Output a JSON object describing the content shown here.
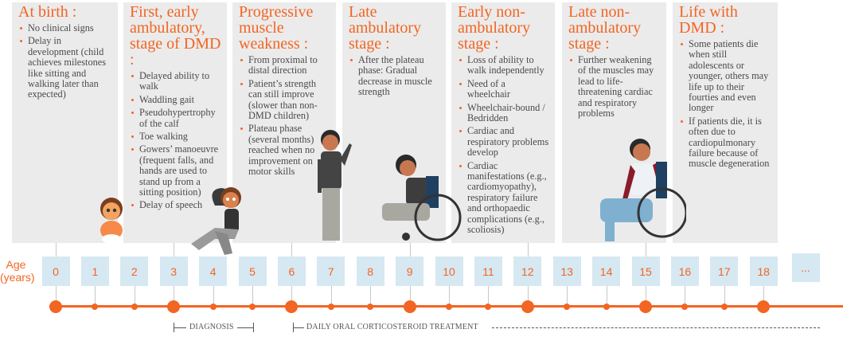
{
  "panels": [
    {
      "title": "At birth :",
      "items": [
        "No clinical signs",
        "Delay in development (child achieves milestones like sitting and walking later than expected)"
      ]
    },
    {
      "title": "First, early ambulatory, stage of DMD :",
      "items": [
        "Delayed ability to walk",
        "Waddling gait",
        "Pseudohypertrophy of the calf",
        "Toe walking",
        "Gowers’ manoeuvre (frequent falls, and hands are used to stand up from a sitting position)",
        "Delay of speech"
      ]
    },
    {
      "title": "Progressive muscle weakness :",
      "items": [
        "From proximal to distal direction",
        "Patient’s strength can still improve (slower than non-DMD children)",
        "Plateau phase (several months) reached when no improvement on motor skills"
      ]
    },
    {
      "title": "Late ambulatory stage :",
      "items": [
        "After the plateau phase: Gradual decrease in muscle strength"
      ]
    },
    {
      "title": "Early non-ambulatory stage :",
      "items": [
        "Loss of ability to walk independently",
        "Need of a wheelchair",
        "Wheelchair-bound / Bedridden",
        "Cardiac and respiratory problems develop",
        "Cardiac manifestations (e.g., cardiomyopathy), respiratory failure and orthopaedic complications (e.g., scoliosis)"
      ]
    },
    {
      "title": "Late non-ambulatory stage :",
      "items": [
        "Further weakening of the muscles may lead to life-threatening cardiac and respiratory problems"
      ]
    },
    {
      "title": "Life with DMD :",
      "items": [
        "Some patients die when still adolescents or younger, others may life up to their fourties and even longer",
        "If patients die, it is often due to cardiopulmonary failure because of muscle degeneration"
      ]
    }
  ],
  "age_axis": {
    "label_line1": "Age",
    "label_line2": "(years)",
    "ticks": [
      "0",
      "1",
      "2",
      "3",
      "4",
      "5",
      "6",
      "7",
      "8",
      "9",
      "10",
      "11",
      "12",
      "13",
      "14",
      "15",
      "16",
      "17",
      "18",
      "..."
    ],
    "major_ticks": [
      0,
      3,
      6,
      9,
      12,
      15,
      18
    ]
  },
  "periods": {
    "diagnosis": "DIAGNOSIS",
    "treatment": "DAILY ORAL CORTICOSTEROID TREATMENT"
  },
  "colors": {
    "accent": "#f26522",
    "panel": "#ebebeb",
    "agebox": "#d6e8f2",
    "text": "#4a4a4a"
  }
}
